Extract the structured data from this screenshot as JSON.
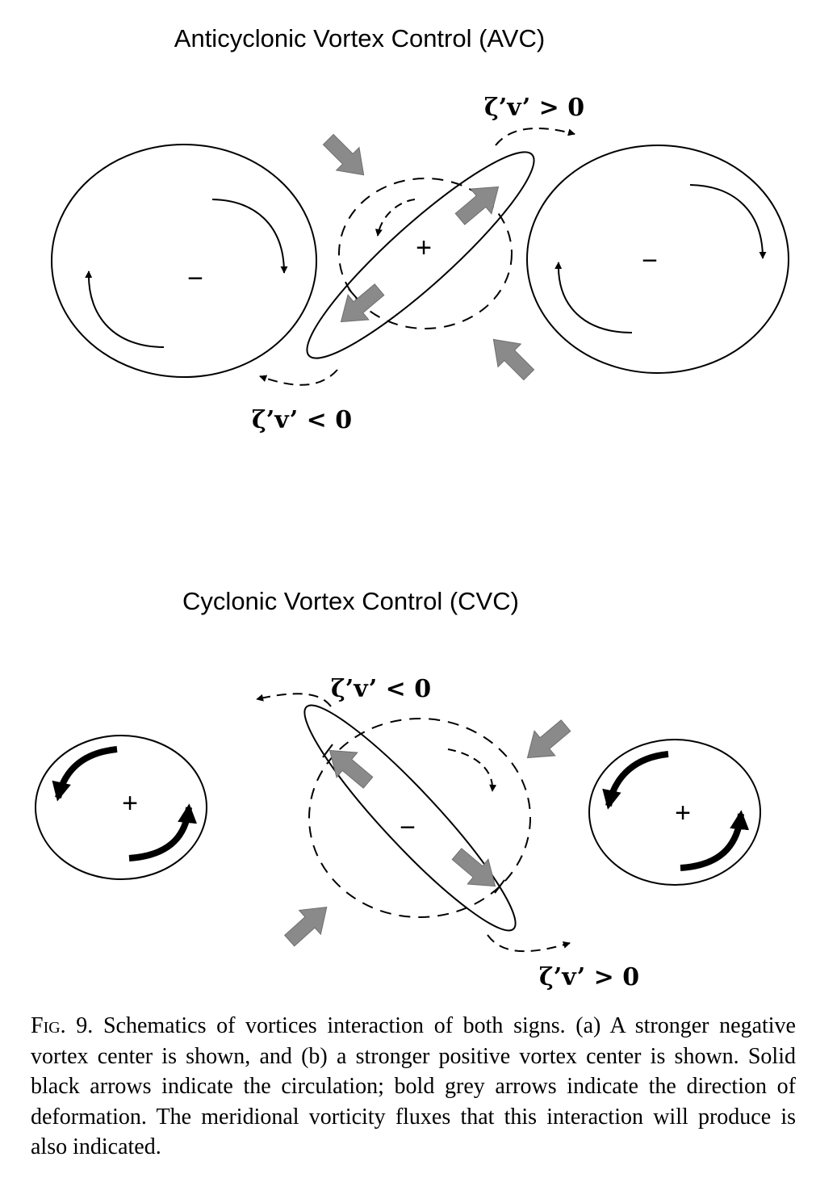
{
  "panel_a": {
    "title": "Anticyclonic Vortex Control (AVC)",
    "left_vortex_sign": "−",
    "center_vortex_sign": "+",
    "right_vortex_sign": "−",
    "flux_top": "ζ’v’ > 0",
    "flux_bottom": "ζ’v’ < 0"
  },
  "panel_b": {
    "title": "Cyclonic Vortex Control (CVC)",
    "left_vortex_sign": "+",
    "center_vortex_sign": "−",
    "right_vortex_sign": "+",
    "flux_top": "ζ’v’ < 0",
    "flux_bottom": "ζ’v’ > 0"
  },
  "caption": {
    "label": "Fig. 9.",
    "text": " Schematics of vortices interaction of both signs. (a) A stronger negative vortex center is shown, and (b) a stronger positive vortex center is shown. Solid black arrows indicate the circulation; bold grey arrows indicate the direction of deformation. The meridional vorticity fluxes that this interaction will produce is also indicated."
  },
  "colors": {
    "deformation_arrow": "#8a8a8a",
    "line": "#000000"
  }
}
